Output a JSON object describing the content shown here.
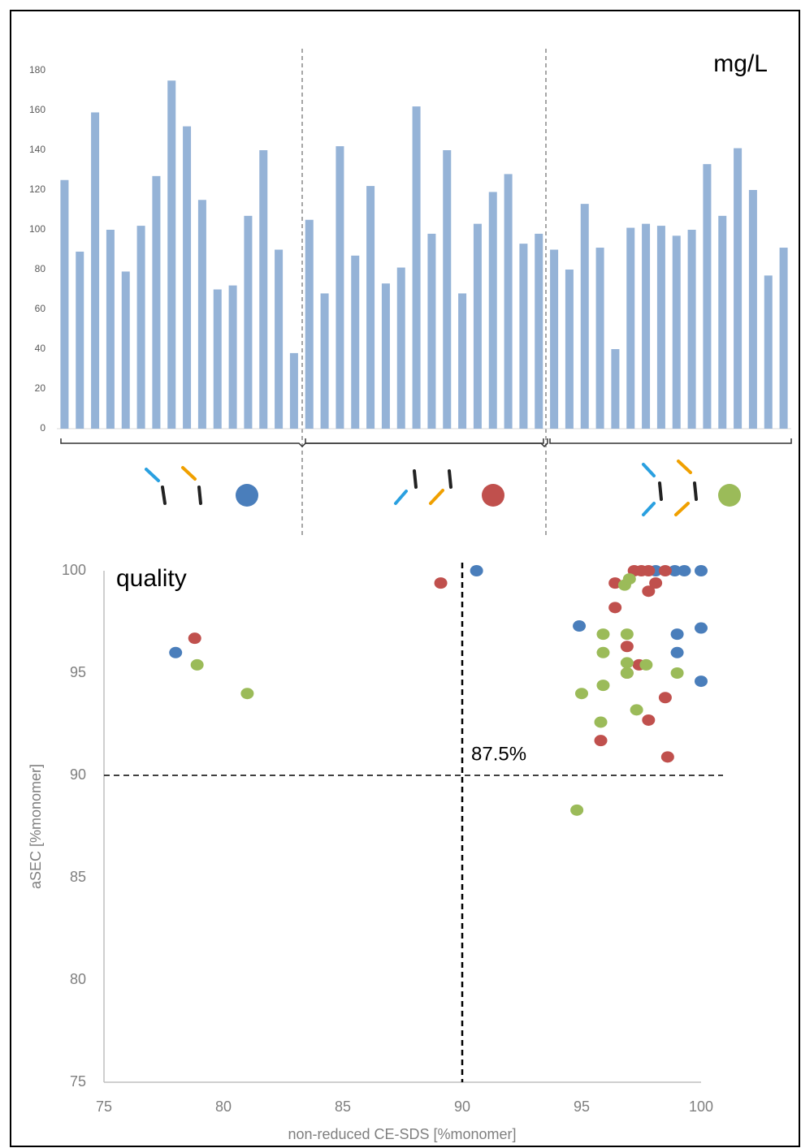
{
  "chart_data": [
    {
      "type": "bar",
      "annotation": "mg/L",
      "color": "#95b3d7",
      "categories": [
        null,
        null,
        null,
        null,
        null,
        null,
        null,
        null,
        null,
        null,
        null,
        null,
        null,
        null,
        null,
        null,
        null,
        null,
        null,
        null,
        null,
        null,
        null,
        null,
        null,
        null,
        null,
        null,
        null,
        null,
        null,
        null,
        null,
        null,
        null,
        null,
        null,
        null,
        null,
        null,
        null,
        null,
        null,
        null,
        null,
        null,
        null,
        null
      ],
      "values": [
        125,
        89,
        159,
        100,
        79,
        102,
        127,
        175,
        152,
        115,
        70,
        72,
        107,
        140,
        90,
        38,
        105,
        68,
        142,
        87,
        122,
        73,
        81,
        162,
        98,
        140,
        68,
        103,
        119,
        128,
        93,
        98,
        90,
        80,
        113,
        91,
        40,
        101,
        103,
        102,
        97,
        100,
        133,
        107,
        141,
        120,
        77,
        91
      ],
      "ylim": [
        0,
        180
      ],
      "yticks": [
        0,
        20,
        40,
        60,
        80,
        100,
        120,
        140,
        160,
        180
      ]
    },
    {
      "type": "scatter",
      "title": "quality",
      "x_label": "non-reduced CE-SDS [%monomer]",
      "y_label": "aSEC [%monomer]",
      "xlim": [
        75,
        100
      ],
      "ylim": [
        75,
        100
      ],
      "xticks": [
        75,
        80,
        85,
        90,
        95,
        100
      ],
      "yticks": [
        75,
        80,
        85,
        90,
        95,
        100
      ],
      "reference_lines": {
        "x": 90,
        "y": 90
      },
      "annotation": "87.5%",
      "series": [
        {
          "color": "#4a7ebb",
          "x": [
            78,
            90.6,
            94.9,
            98.1,
            98.9,
            99.3,
            100,
            99,
            100,
            99,
            100
          ],
          "values": [
            96,
            100,
            97.3,
            100,
            100,
            100,
            100,
            96.9,
            97.2,
            96,
            94.6
          ]
        },
        {
          "color": "#c0504d",
          "x": [
            78.8,
            89.1,
            96.4,
            96.4,
            97.2,
            97.5,
            97.8,
            98.5,
            98.1,
            97.8,
            96.9,
            96.9,
            97.4,
            98.5,
            97.8,
            95.8,
            98.6
          ],
          "values": [
            96.7,
            99.4,
            99.4,
            98.2,
            100,
            100,
            100,
            100,
            99.4,
            99,
            96.3,
            95,
            95.4,
            93.8,
            92.7,
            91.7,
            90.9
          ]
        },
        {
          "color": "#9bbb59",
          "x": [
            78.9,
            81,
            94.8,
            95,
            95.9,
            95.8,
            95.9,
            95.9,
            96.9,
            96.9,
            96.9,
            97.7,
            97.3,
            99,
            96.8,
            97
          ],
          "values": [
            95.4,
            94,
            88.3,
            94,
            94.4,
            92.6,
            96.9,
            96,
            96.9,
            95.5,
            95,
            95.4,
            93.2,
            95,
            99.3,
            99.6
          ]
        }
      ]
    }
  ]
}
